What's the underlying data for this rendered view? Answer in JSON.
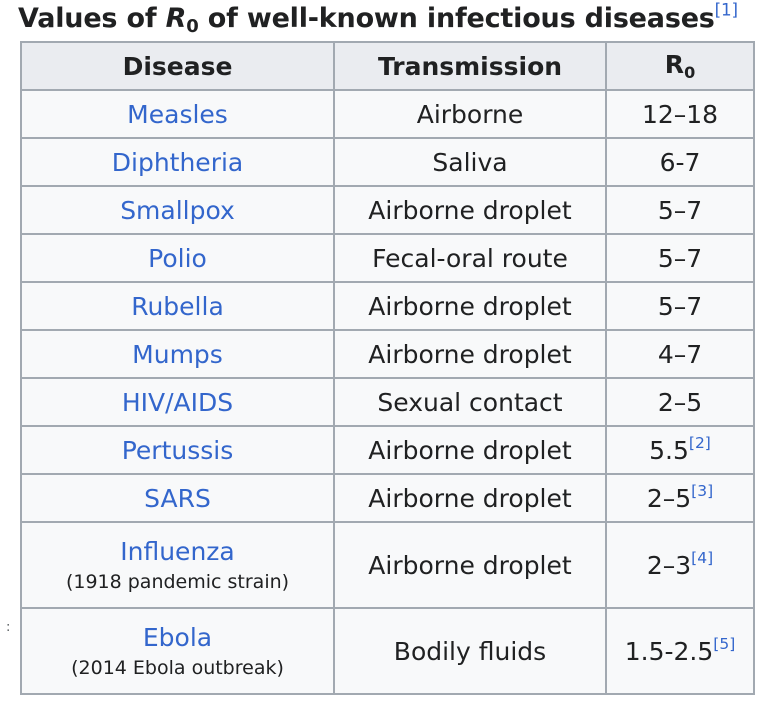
{
  "caption": {
    "prefix": "Values of ",
    "symbol": "R",
    "subscript": "0",
    "suffix": " of well-known infectious diseases",
    "ref": "[1]"
  },
  "stray_mark": ":",
  "headers": {
    "disease": "Disease",
    "transmission": "Transmission",
    "r0_symbol": "R",
    "r0_subscript": "0"
  },
  "rows": [
    {
      "disease": "Measles",
      "note": "",
      "transmission": "Airborne",
      "r0": "12–18",
      "ref": ""
    },
    {
      "disease": "Diphtheria",
      "note": "",
      "transmission": "Saliva",
      "r0": "6-7",
      "ref": ""
    },
    {
      "disease": "Smallpox",
      "note": "",
      "transmission": "Airborne droplet",
      "r0": "5–7",
      "ref": ""
    },
    {
      "disease": "Polio",
      "note": "",
      "transmission": "Fecal-oral route",
      "r0": "5–7",
      "ref": ""
    },
    {
      "disease": "Rubella",
      "note": "",
      "transmission": "Airborne droplet",
      "r0": "5–7",
      "ref": ""
    },
    {
      "disease": "Mumps",
      "note": "",
      "transmission": "Airborne droplet",
      "r0": "4–7",
      "ref": ""
    },
    {
      "disease": "HIV/AIDS",
      "note": "",
      "transmission": "Sexual contact",
      "r0": "2–5",
      "ref": ""
    },
    {
      "disease": "Pertussis",
      "note": "",
      "transmission": "Airborne droplet",
      "r0": "5.5",
      "ref": "[2]"
    },
    {
      "disease": "SARS",
      "note": "",
      "transmission": "Airborne droplet",
      "r0": "2–5",
      "ref": "[3]"
    },
    {
      "disease": "Influenza",
      "note": "(1918 pandemic strain)",
      "transmission": "Airborne droplet",
      "r0": "2–3",
      "ref": "[4]"
    },
    {
      "disease": "Ebola",
      "note": "(2014 Ebola outbreak)",
      "transmission": "Bodily fluids",
      "r0": "1.5-2.5",
      "ref": "[5]"
    }
  ],
  "colors": {
    "link": "#3366cc",
    "header_bg": "#eaecf0",
    "cell_bg": "#f8f9fa",
    "border": "#a2a9b1",
    "text": "#202122"
  }
}
